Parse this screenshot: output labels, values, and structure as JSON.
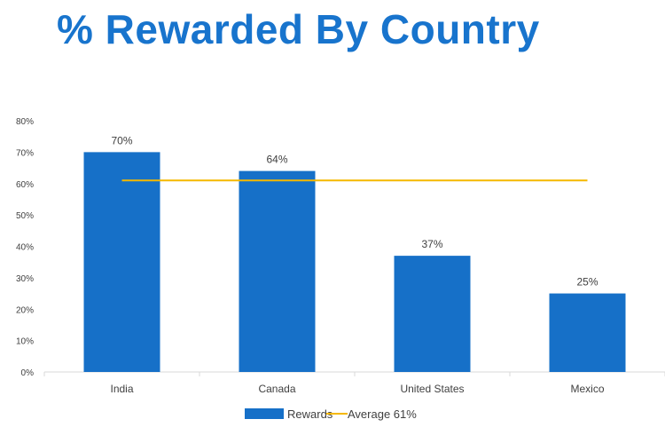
{
  "title": "% Rewarded By Country",
  "chart_data": {
    "type": "bar",
    "categories": [
      "India",
      "Canada",
      "United States",
      "Mexico"
    ],
    "series": [
      {
        "name": "Rewards",
        "values": [
          70,
          64,
          37,
          25
        ],
        "color": "#1670c8"
      }
    ],
    "data_labels": [
      "70%",
      "64%",
      "37%",
      "25%"
    ],
    "average": {
      "name": "Average 61%",
      "value": 61,
      "color": "#f5b800"
    },
    "ylim": [
      0,
      80
    ],
    "yticks": [
      0,
      10,
      20,
      30,
      40,
      50,
      60,
      70,
      80
    ],
    "ytick_labels": [
      "0%",
      "10%",
      "20%",
      "30%",
      "40%",
      "50%",
      "60%",
      "70%",
      "80%"
    ],
    "legend": [
      "Rewards",
      "Average 61%"
    ],
    "legend_position": "bottom",
    "grid": false
  }
}
